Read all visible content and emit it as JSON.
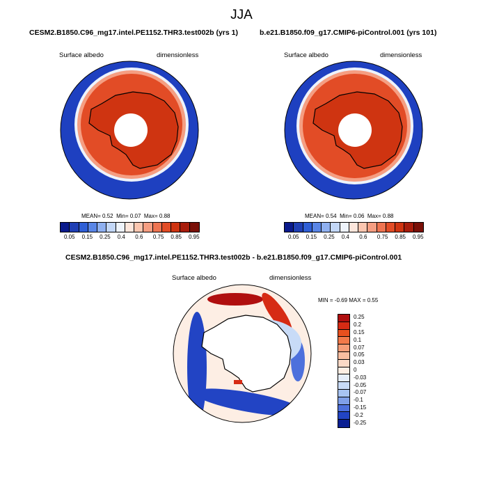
{
  "figure": {
    "title": "JJA"
  },
  "panels": [
    {
      "title": "CESM2.B1850.C96_mg17.intel.PE1152.THR3.test002b (yrs 1)",
      "left_label": "Surface albedo",
      "right_label": "dimensionless",
      "stats": {
        "mean_label": "MEAN=",
        "mean": "0.52",
        "min_label": "Min=",
        "min": "0.07",
        "max_label": "Max=",
        "max": "0.88"
      }
    },
    {
      "title": "b.e21.B1850.f09_g17.CMIP6-piControl.001 (yrs 101)",
      "left_label": "Surface albedo",
      "right_label": "dimensionless",
      "stats": {
        "mean_label": "MEAN=",
        "mean": "0.54",
        "min_label": "Min=",
        "min": "0.06",
        "max_label": "Max=",
        "max": "0.88"
      }
    },
    {
      "title": "CESM2.B1850.C96_mg17.intel.PE1152.THR3.test002b - b.e21.B1850.f09_g17.CMIP6-piControl.001",
      "left_label": "Surface albedo",
      "right_label": "dimensionless",
      "stats": {
        "min_label": "MIN =",
        "min": "-0.69",
        "max_label": "MAX =",
        "max": "0.55"
      }
    }
  ],
  "colorbar_main": {
    "labels": [
      "0.05",
      "0.15",
      "0.25",
      "0.4",
      "0.6",
      "0.75",
      "0.85",
      "0.95"
    ],
    "colors": [
      "#0a1a8c",
      "#1f3fb4",
      "#2f5fd6",
      "#5a86e6",
      "#8fb0f0",
      "#c3d7f7",
      "#eef3fb",
      "#fde6dc",
      "#fbc6b0",
      "#f59e82",
      "#ee7451",
      "#e24c26",
      "#cf3411",
      "#a81d0c",
      "#7a1008"
    ]
  },
  "colorbar_diff": {
    "labels": [
      "0.25",
      "0.2",
      "0.15",
      "0.1",
      "0.07",
      "0.05",
      "0.03",
      "0",
      "-0.03",
      "-0.05",
      "-0.07",
      "-0.1",
      "-0.15",
      "-0.2",
      "-0.25"
    ],
    "colors": [
      "#b00f0f",
      "#d62b14",
      "#e8501e",
      "#f27a4a",
      "#f69e78",
      "#f9bea0",
      "#fbd9c6",
      "#fdeee4",
      "#e6eefb",
      "#c8dbf7",
      "#a7c3f2",
      "#7f9fe8",
      "#4d70dc",
      "#2244c4",
      "#0a1f92"
    ]
  },
  "chart_data": [
    {
      "type": "heatmap",
      "projection": "south-polar-stereographic",
      "title": "CESM2.B1850.C96_mg17.intel.PE1152.THR3.test002b (yrs 1)",
      "variable": "Surface albedo",
      "units": "dimensionless",
      "season": "JJA",
      "mean": 0.52,
      "min": 0.07,
      "max": 0.88,
      "levels": [
        0.05,
        0.15,
        0.25,
        0.4,
        0.6,
        0.75,
        0.85,
        0.95
      ],
      "description_regions": {
        "open_ocean": 0.07,
        "sea_ice": 0.8,
        "antarctica": 0.85
      }
    },
    {
      "type": "heatmap",
      "projection": "south-polar-stereographic",
      "title": "b.e21.B1850.f09_g17.CMIP6-piControl.001 (yrs 101)",
      "variable": "Surface albedo",
      "units": "dimensionless",
      "season": "JJA",
      "mean": 0.54,
      "min": 0.06,
      "max": 0.88,
      "levels": [
        0.05,
        0.15,
        0.25,
        0.4,
        0.6,
        0.75,
        0.85,
        0.95
      ]
    },
    {
      "type": "heatmap",
      "projection": "south-polar-stereographic",
      "title": "CESM2.B1850.C96_mg17.intel.PE1152.THR3.test002b - b.e21.B1850.f09_g17.CMIP6-piControl.001",
      "variable": "Surface albedo",
      "units": "dimensionless",
      "min": -0.69,
      "max": 0.55,
      "levels": [
        0.25,
        0.2,
        0.15,
        0.1,
        0.07,
        0.05,
        0.03,
        0,
        -0.03,
        -0.05,
        -0.07,
        -0.1,
        -0.15,
        -0.2,
        -0.25
      ]
    }
  ]
}
